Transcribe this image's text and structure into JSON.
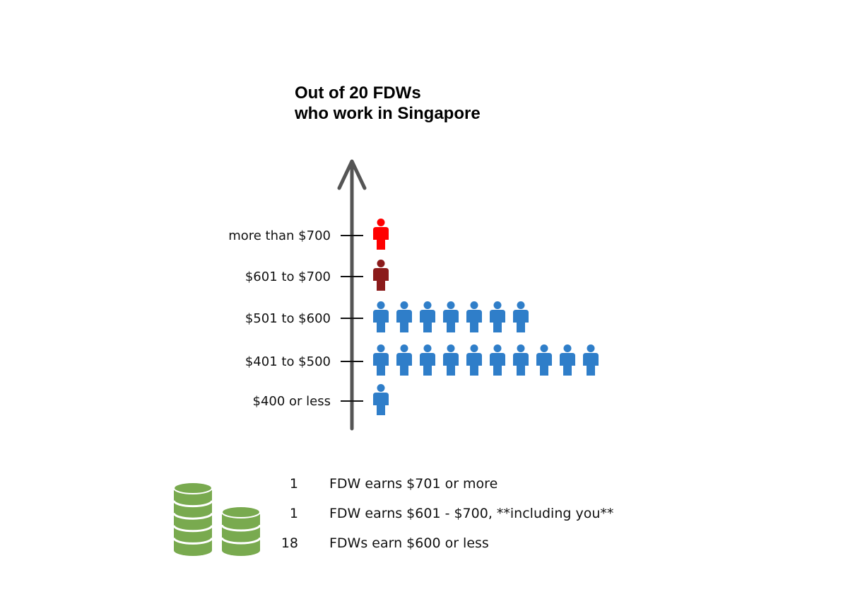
{
  "title": {
    "line1": "Out of 20 FDWs",
    "line2": "who work in Singapore"
  },
  "chart_data": {
    "type": "pictograph",
    "categories": [
      "more than $700",
      "$601 to $700",
      "$501 to $600",
      "$401 to $500",
      "$400 or less"
    ],
    "values": [
      1,
      1,
      7,
      10,
      1
    ],
    "category_colors": [
      "#ff0000",
      "#8b1a1a",
      "#2f7ec9",
      "#2f7ec9",
      "#2f7ec9"
    ],
    "xlabel": "",
    "ylabel": ""
  },
  "colors": {
    "axis": "#555555",
    "coin_fill": "#79aa4f",
    "coin_band": "#ffffff"
  },
  "summary": {
    "icon": "coin-stacks-icon",
    "rows": [
      {
        "count": "1",
        "text": "FDW earns $701 or more"
      },
      {
        "count": "1",
        "text": "FDW earns $601 - $700, **including you**"
      },
      {
        "count": "18",
        "text": "FDWs earn $600 or less"
      }
    ]
  }
}
